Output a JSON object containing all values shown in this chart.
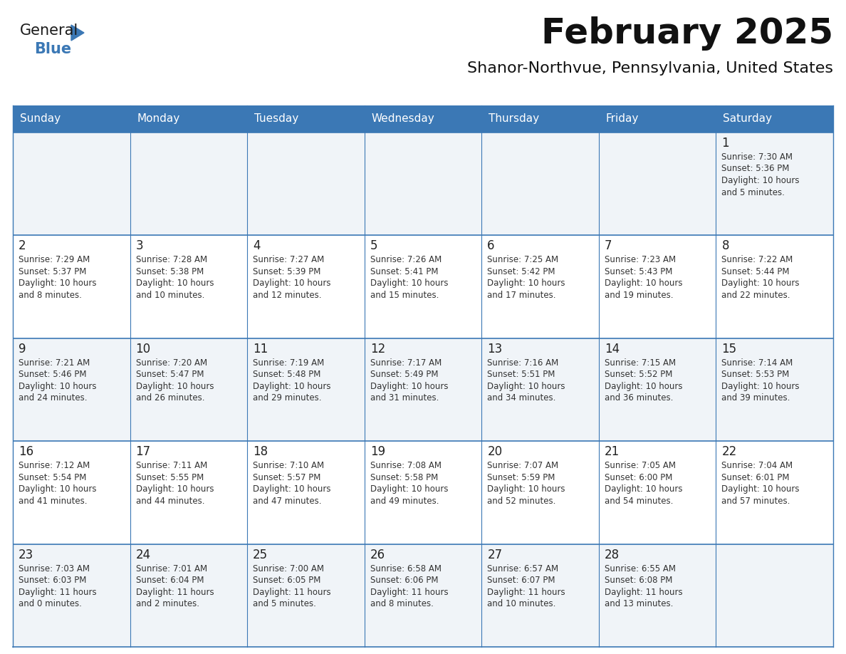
{
  "title": "February 2025",
  "subtitle": "Shanor-Northvue, Pennsylvania, United States",
  "header_bg": "#3b78b5",
  "header_text_color": "#ffffff",
  "cell_bg_odd": "#f0f4f8",
  "cell_bg_even": "#ffffff",
  "border_color": "#3b78b5",
  "day_number_color": "#222222",
  "text_color": "#333333",
  "days_of_week": [
    "Sunday",
    "Monday",
    "Tuesday",
    "Wednesday",
    "Thursday",
    "Friday",
    "Saturday"
  ],
  "weeks": [
    [
      {
        "day": "",
        "info": ""
      },
      {
        "day": "",
        "info": ""
      },
      {
        "day": "",
        "info": ""
      },
      {
        "day": "",
        "info": ""
      },
      {
        "day": "",
        "info": ""
      },
      {
        "day": "",
        "info": ""
      },
      {
        "day": "1",
        "info": "Sunrise: 7:30 AM\nSunset: 5:36 PM\nDaylight: 10 hours\nand 5 minutes."
      }
    ],
    [
      {
        "day": "2",
        "info": "Sunrise: 7:29 AM\nSunset: 5:37 PM\nDaylight: 10 hours\nand 8 minutes."
      },
      {
        "day": "3",
        "info": "Sunrise: 7:28 AM\nSunset: 5:38 PM\nDaylight: 10 hours\nand 10 minutes."
      },
      {
        "day": "4",
        "info": "Sunrise: 7:27 AM\nSunset: 5:39 PM\nDaylight: 10 hours\nand 12 minutes."
      },
      {
        "day": "5",
        "info": "Sunrise: 7:26 AM\nSunset: 5:41 PM\nDaylight: 10 hours\nand 15 minutes."
      },
      {
        "day": "6",
        "info": "Sunrise: 7:25 AM\nSunset: 5:42 PM\nDaylight: 10 hours\nand 17 minutes."
      },
      {
        "day": "7",
        "info": "Sunrise: 7:23 AM\nSunset: 5:43 PM\nDaylight: 10 hours\nand 19 minutes."
      },
      {
        "day": "8",
        "info": "Sunrise: 7:22 AM\nSunset: 5:44 PM\nDaylight: 10 hours\nand 22 minutes."
      }
    ],
    [
      {
        "day": "9",
        "info": "Sunrise: 7:21 AM\nSunset: 5:46 PM\nDaylight: 10 hours\nand 24 minutes."
      },
      {
        "day": "10",
        "info": "Sunrise: 7:20 AM\nSunset: 5:47 PM\nDaylight: 10 hours\nand 26 minutes."
      },
      {
        "day": "11",
        "info": "Sunrise: 7:19 AM\nSunset: 5:48 PM\nDaylight: 10 hours\nand 29 minutes."
      },
      {
        "day": "12",
        "info": "Sunrise: 7:17 AM\nSunset: 5:49 PM\nDaylight: 10 hours\nand 31 minutes."
      },
      {
        "day": "13",
        "info": "Sunrise: 7:16 AM\nSunset: 5:51 PM\nDaylight: 10 hours\nand 34 minutes."
      },
      {
        "day": "14",
        "info": "Sunrise: 7:15 AM\nSunset: 5:52 PM\nDaylight: 10 hours\nand 36 minutes."
      },
      {
        "day": "15",
        "info": "Sunrise: 7:14 AM\nSunset: 5:53 PM\nDaylight: 10 hours\nand 39 minutes."
      }
    ],
    [
      {
        "day": "16",
        "info": "Sunrise: 7:12 AM\nSunset: 5:54 PM\nDaylight: 10 hours\nand 41 minutes."
      },
      {
        "day": "17",
        "info": "Sunrise: 7:11 AM\nSunset: 5:55 PM\nDaylight: 10 hours\nand 44 minutes."
      },
      {
        "day": "18",
        "info": "Sunrise: 7:10 AM\nSunset: 5:57 PM\nDaylight: 10 hours\nand 47 minutes."
      },
      {
        "day": "19",
        "info": "Sunrise: 7:08 AM\nSunset: 5:58 PM\nDaylight: 10 hours\nand 49 minutes."
      },
      {
        "day": "20",
        "info": "Sunrise: 7:07 AM\nSunset: 5:59 PM\nDaylight: 10 hours\nand 52 minutes."
      },
      {
        "day": "21",
        "info": "Sunrise: 7:05 AM\nSunset: 6:00 PM\nDaylight: 10 hours\nand 54 minutes."
      },
      {
        "day": "22",
        "info": "Sunrise: 7:04 AM\nSunset: 6:01 PM\nDaylight: 10 hours\nand 57 minutes."
      }
    ],
    [
      {
        "day": "23",
        "info": "Sunrise: 7:03 AM\nSunset: 6:03 PM\nDaylight: 11 hours\nand 0 minutes."
      },
      {
        "day": "24",
        "info": "Sunrise: 7:01 AM\nSunset: 6:04 PM\nDaylight: 11 hours\nand 2 minutes."
      },
      {
        "day": "25",
        "info": "Sunrise: 7:00 AM\nSunset: 6:05 PM\nDaylight: 11 hours\nand 5 minutes."
      },
      {
        "day": "26",
        "info": "Sunrise: 6:58 AM\nSunset: 6:06 PM\nDaylight: 11 hours\nand 8 minutes."
      },
      {
        "day": "27",
        "info": "Sunrise: 6:57 AM\nSunset: 6:07 PM\nDaylight: 11 hours\nand 10 minutes."
      },
      {
        "day": "28",
        "info": "Sunrise: 6:55 AM\nSunset: 6:08 PM\nDaylight: 11 hours\nand 13 minutes."
      },
      {
        "day": "",
        "info": ""
      }
    ]
  ],
  "logo_text_general": "General",
  "logo_text_blue": "Blue",
  "logo_color_general": "#1a1a1a",
  "logo_color_blue": "#3b78b5",
  "logo_triangle_color": "#3b78b5",
  "title_fontsize": 36,
  "subtitle_fontsize": 16,
  "header_fontsize": 11,
  "day_num_fontsize": 12,
  "cell_text_fontsize": 8.5
}
